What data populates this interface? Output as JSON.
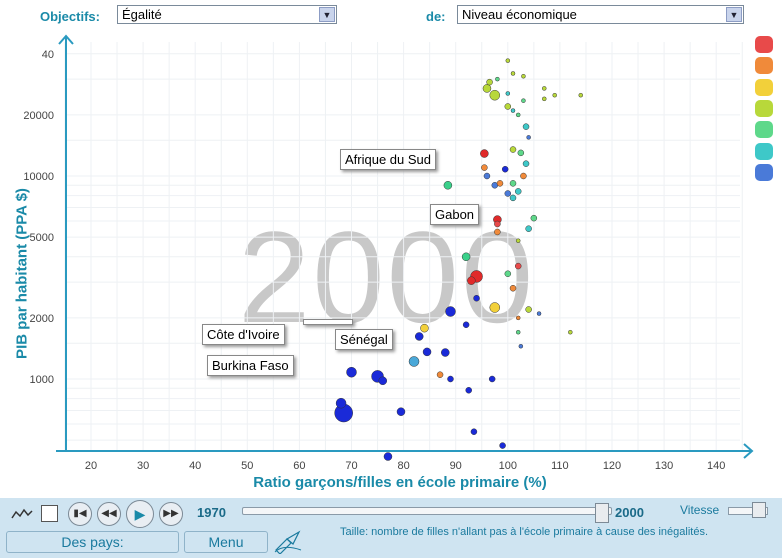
{
  "header": {
    "objectifs_label": "Objectifs:",
    "objectifs_value": "Égalité",
    "de_label": "de:",
    "de_value": "Niveau économique"
  },
  "chart_data": {
    "type": "scatter",
    "year": "2000",
    "xlabel": "Ratio garçons/filles en école primaire (%)",
    "ylabel": "PIB par habitant (PPA $)",
    "xticks": [
      "20",
      "30",
      "40",
      "50",
      "60",
      "70",
      "80",
      "90",
      "100",
      "110",
      "120",
      "130",
      "140"
    ],
    "yticks": [
      "1000",
      "2000",
      "5000",
      "10000",
      "20000",
      "40"
    ],
    "xlim": [
      15,
      145
    ],
    "ylog": true,
    "callouts": [
      "Afrique du Sud",
      "Gabon",
      "Côte d'Ivoire",
      "Sénégal",
      "Burkina Faso"
    ],
    "legend_colors": [
      "#e84a4a",
      "#f08a3a",
      "#f2d03a",
      "#b8d83a",
      "#5ed88a",
      "#3ec8c8",
      "#4a7ad8"
    ]
  },
  "controls": {
    "start_year": "1970",
    "end_year": "2000",
    "speed_label": "Vitesse",
    "countries_button": "Des pays:",
    "menu_button": "Menu",
    "size_note": "Taille: nombre de filles n'allant pas à l'école primaire à cause des inégalités."
  }
}
